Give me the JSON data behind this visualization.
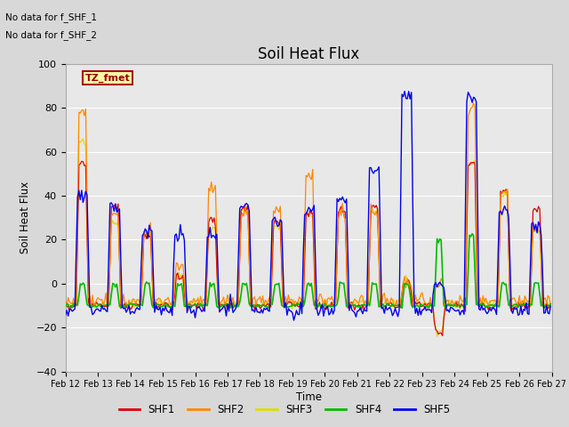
{
  "title": "Soil Heat Flux",
  "ylabel": "Soil Heat Flux",
  "xlabel": "Time",
  "annotation_lines": [
    "No data for f_SHF_1",
    "No data for f_SHF_2"
  ],
  "tz_label": "TZ_fmet",
  "ylim": [
    -40,
    100
  ],
  "yticks": [
    -40,
    -20,
    0,
    20,
    40,
    60,
    80,
    100
  ],
  "xtick_labels": [
    "Feb 12",
    "Feb 13",
    "Feb 14",
    "Feb 15",
    "Feb 16",
    "Feb 17",
    "Feb 18",
    "Feb 19",
    "Feb 20",
    "Feb 21",
    "Feb 22",
    "Feb 23",
    "Feb 24",
    "Feb 25",
    "Feb 26",
    "Feb 27"
  ],
  "colors": {
    "SHF1": "#dd0000",
    "SHF2": "#ff8800",
    "SHF3": "#dddd00",
    "SHF4": "#00bb00",
    "SHF5": "#0000ee"
  },
  "bg_color": "#d8d8d8",
  "plot_bg": "#e8e8e8",
  "tz_box_color": "#ffffaa",
  "tz_border_color": "#aa0000",
  "tz_text_color": "#990000",
  "n_points": 360,
  "n_days": 15
}
